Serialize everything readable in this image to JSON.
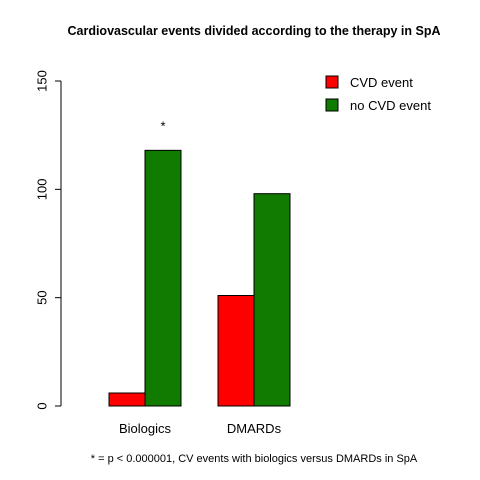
{
  "chart_data": {
    "type": "bar",
    "title": "Cardiovascular events divided according to the therapy in SpA",
    "xlabel": "",
    "ylabel": "",
    "categories": [
      "Biologics",
      "DMARDs"
    ],
    "series": [
      {
        "name": "CVD event",
        "color": "#ff0000",
        "values": [
          6,
          51
        ]
      },
      {
        "name": "no CVD event",
        "color": "#117a00",
        "values": [
          118,
          98
        ]
      }
    ],
    "ylim": [
      0,
      150
    ],
    "yticks": [
      0,
      50,
      100,
      150
    ],
    "grid": false,
    "legend_position": "top-right",
    "annotations": [
      {
        "text": "*",
        "category": "Biologics",
        "series": "no CVD event"
      }
    ],
    "footnote": "* = p < 0.000001, CV events with biologics versus DMARDs in SpA"
  }
}
